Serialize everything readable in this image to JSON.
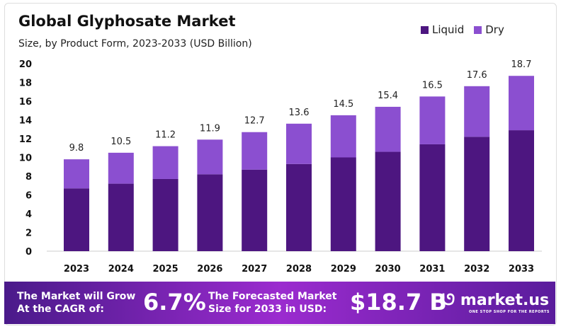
{
  "chart_data": {
    "type": "bar",
    "stacked": true,
    "title": "Global Glyphosate Market",
    "subtitle": "Size, by Product Form, 2023-2033 (USD Billion)",
    "categories": [
      "2023",
      "2024",
      "2025",
      "2026",
      "2027",
      "2028",
      "2029",
      "2030",
      "2031",
      "2032",
      "2033"
    ],
    "totals": [
      9.8,
      10.5,
      11.2,
      11.9,
      12.7,
      13.6,
      14.5,
      15.4,
      16.5,
      17.6,
      18.7
    ],
    "series": [
      {
        "name": "Liquid",
        "color": "#4d1680",
        "values": [
          6.7,
          7.2,
          7.7,
          8.2,
          8.7,
          9.3,
          10.0,
          10.6,
          11.4,
          12.2,
          12.9
        ]
      },
      {
        "name": "Dry",
        "color": "#8b4fd0",
        "values": [
          3.1,
          3.3,
          3.5,
          3.7,
          4.0,
          4.3,
          4.5,
          4.8,
          5.1,
          5.4,
          5.8
        ]
      }
    ],
    "ylim": [
      0,
      20
    ],
    "yticks": [
      0,
      2,
      4,
      6,
      8,
      10,
      12,
      14,
      16,
      18,
      20
    ],
    "grid": false,
    "legend": "top-right"
  },
  "banner": {
    "cagr_label": "The Market will Grow At the CAGR of:",
    "cagr_value": "6.7%",
    "forecast_label": "The Forecasted Market Size for 2033 in USD:",
    "forecast_value": "$18.7 B",
    "brand": "market.us",
    "tagline": "ONE STOP SHOP FOR THE REPORTS"
  }
}
